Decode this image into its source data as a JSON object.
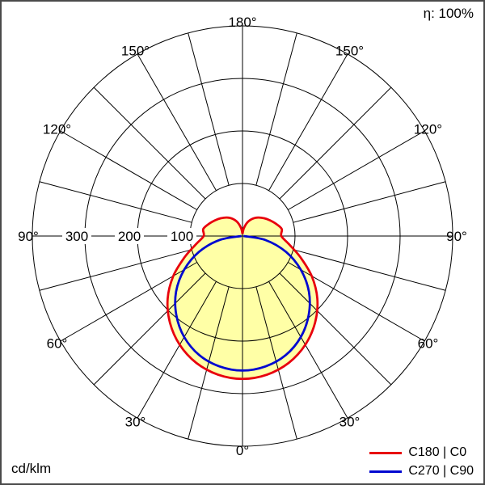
{
  "header": {
    "efficiency_label": "η: 100%"
  },
  "footer": {
    "unit_label": "cd/klm"
  },
  "chart_data": {
    "type": "polar",
    "unit": "cd/klm",
    "efficiency": "η: 100%",
    "radial_ticks": [
      100,
      200,
      300
    ],
    "radial_max": 400,
    "angle_step_deg": 15,
    "angle_label_step_deg": 30,
    "angle_range_deg": [
      0,
      180
    ],
    "grid_color": "#000000",
    "fill_color": "#ffffa6",
    "legend_position": "bottom-right",
    "series": [
      {
        "name": "C180 | C0",
        "color": "#e8000d",
        "angles_deg": [
          0,
          10,
          20,
          30,
          40,
          50,
          60,
          70,
          80,
          90,
          100,
          110,
          120,
          130,
          140,
          150,
          160,
          170,
          180
        ],
        "values": [
          272,
          268,
          257,
          239,
          215,
          186,
          152,
          117,
          90,
          74,
          76,
          68,
          60,
          53,
          46,
          38,
          28,
          15,
          4
        ]
      },
      {
        "name": "C270 | C90",
        "color": "#0008d0",
        "angles_deg": [
          0,
          10,
          20,
          30,
          40,
          50,
          60,
          70,
          80,
          90
        ],
        "values": [
          256,
          252,
          241,
          222,
          196,
          165,
          128,
          88,
          45,
          2
        ]
      }
    ]
  }
}
